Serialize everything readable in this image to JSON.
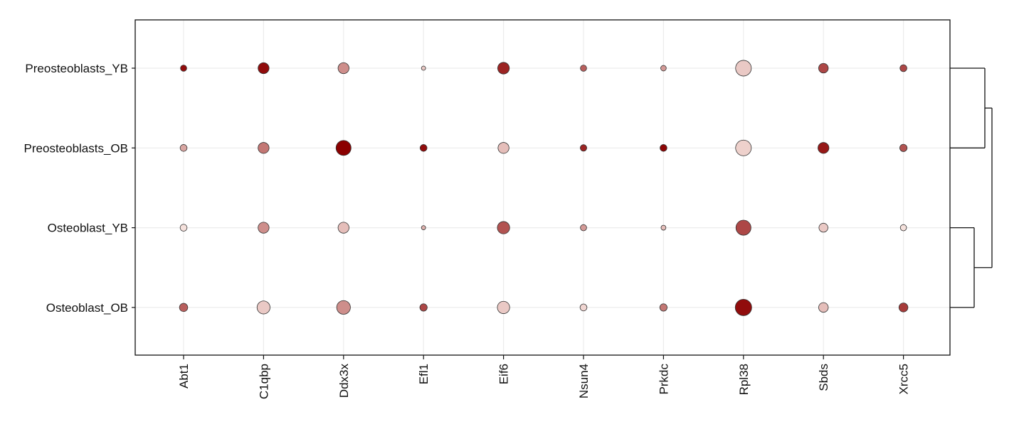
{
  "chart_data": {
    "type": "scatter",
    "subtype": "dot-plot",
    "title": "",
    "xlabel": "",
    "ylabel": "",
    "x_categories": [
      "Abt1",
      "C1qbp",
      "Ddx3x",
      "Efl1",
      "Eif6",
      "Nsun4",
      "Prkdc",
      "Rpl38",
      "Sbds",
      "Xrcc5"
    ],
    "y_categories": [
      "Preosteoblasts_YB",
      "Preosteoblasts_OB",
      "Osteoblast_YB",
      "Osteoblast_OB"
    ],
    "grid": true,
    "legend": "none",
    "dendrogram": {
      "side": "right",
      "merges": [
        [
          "Preosteoblasts_YB",
          "Preosteoblasts_OB"
        ],
        [
          "Osteoblast_YB",
          "Osteoblast_OB"
        ],
        [
          "Preosteoblasts",
          "Osteoblast"
        ]
      ]
    },
    "color_low": "#FBEDE8",
    "color_high": "#8B0000",
    "point_stroke": "#333333",
    "size_note": "relative dot size 0-1; color intensity 0-1",
    "points": [
      {
        "row": "Preosteoblasts_YB",
        "values": [
          {
            "gene": "Abt1",
            "size": 0.2,
            "color": 0.95
          },
          {
            "gene": "C1qbp",
            "size": 0.55,
            "color": 0.95
          },
          {
            "gene": "Ddx3x",
            "size": 0.55,
            "color": 0.4
          },
          {
            "gene": "Efl1",
            "size": 0.05,
            "color": 0.15
          },
          {
            "gene": "Eif6",
            "size": 0.6,
            "color": 0.85
          },
          {
            "gene": "Nsun4",
            "size": 0.2,
            "color": 0.6
          },
          {
            "gene": "Prkdc",
            "size": 0.15,
            "color": 0.35
          },
          {
            "gene": "Rpl38",
            "size": 0.9,
            "color": 0.15
          },
          {
            "gene": "Sbds",
            "size": 0.45,
            "color": 0.7
          },
          {
            "gene": "Xrcc5",
            "size": 0.25,
            "color": 0.7
          }
        ]
      },
      {
        "row": "Preosteoblasts_OB",
        "values": [
          {
            "gene": "Abt1",
            "size": 0.25,
            "color": 0.3
          },
          {
            "gene": "C1qbp",
            "size": 0.55,
            "color": 0.5
          },
          {
            "gene": "Ddx3x",
            "size": 0.85,
            "color": 1.0
          },
          {
            "gene": "Efl1",
            "size": 0.25,
            "color": 0.95
          },
          {
            "gene": "Eif6",
            "size": 0.55,
            "color": 0.2
          },
          {
            "gene": "Nsun4",
            "size": 0.22,
            "color": 0.85
          },
          {
            "gene": "Prkdc",
            "size": 0.25,
            "color": 0.98
          },
          {
            "gene": "Rpl38",
            "size": 0.9,
            "color": 0.12
          },
          {
            "gene": "Sbds",
            "size": 0.55,
            "color": 0.9
          },
          {
            "gene": "Xrcc5",
            "size": 0.28,
            "color": 0.65
          }
        ]
      },
      {
        "row": "Osteoblast_YB",
        "values": [
          {
            "gene": "Abt1",
            "size": 0.25,
            "color": 0.05
          },
          {
            "gene": "C1qbp",
            "size": 0.55,
            "color": 0.4
          },
          {
            "gene": "Ddx3x",
            "size": 0.55,
            "color": 0.2
          },
          {
            "gene": "Efl1",
            "size": 0.05,
            "color": 0.25
          },
          {
            "gene": "Eif6",
            "size": 0.65,
            "color": 0.65
          },
          {
            "gene": "Nsun4",
            "size": 0.2,
            "color": 0.35
          },
          {
            "gene": "Prkdc",
            "size": 0.1,
            "color": 0.2
          },
          {
            "gene": "Rpl38",
            "size": 0.85,
            "color": 0.7
          },
          {
            "gene": "Sbds",
            "size": 0.4,
            "color": 0.15
          },
          {
            "gene": "Xrcc5",
            "size": 0.2,
            "color": 0.05
          }
        ]
      },
      {
        "row": "Osteoblast_OB",
        "values": [
          {
            "gene": "Abt1",
            "size": 0.35,
            "color": 0.6
          },
          {
            "gene": "C1qbp",
            "size": 0.7,
            "color": 0.15
          },
          {
            "gene": "Ddx3x",
            "size": 0.75,
            "color": 0.4
          },
          {
            "gene": "Efl1",
            "size": 0.28,
            "color": 0.7
          },
          {
            "gene": "Eif6",
            "size": 0.65,
            "color": 0.15
          },
          {
            "gene": "Nsun4",
            "size": 0.25,
            "color": 0.1
          },
          {
            "gene": "Prkdc",
            "size": 0.28,
            "color": 0.5
          },
          {
            "gene": "Rpl38",
            "size": 0.95,
            "color": 0.95
          },
          {
            "gene": "Sbds",
            "size": 0.45,
            "color": 0.2
          },
          {
            "gene": "Xrcc5",
            "size": 0.4,
            "color": 0.75
          }
        ]
      }
    ]
  }
}
